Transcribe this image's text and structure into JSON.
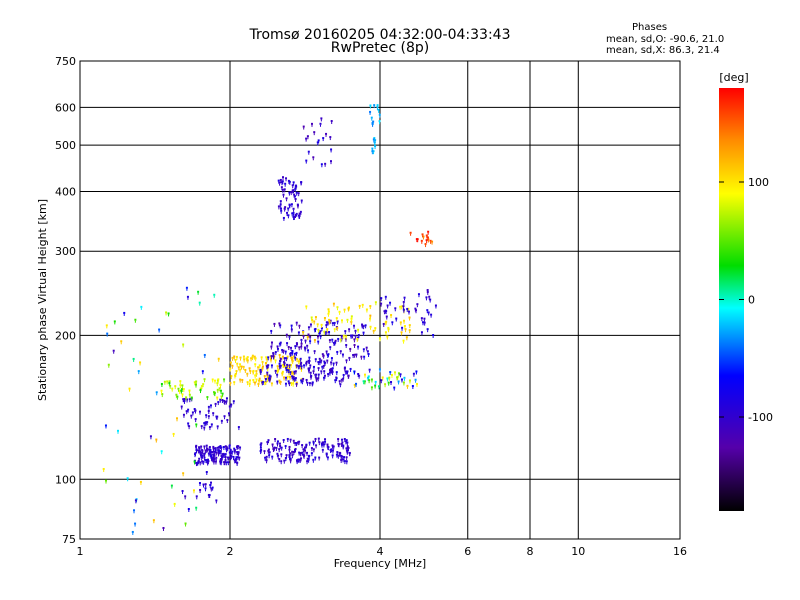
{
  "header": {
    "title_line1": "Tromsø 20160205 04:32:00-04:33:43",
    "title_line2": "RwPretec (8p)"
  },
  "phase_info": {
    "heading": "Phases",
    "o_line": "mean, sd,O: -90.6, 21.0",
    "x_line": "mean, sd,X:  86.3, 21.4"
  },
  "chart_data": {
    "type": "scatter",
    "xlabel": "Frequency [MHz]",
    "ylabel": "Stationary phase Virtual Height [km]",
    "x_scale": "log",
    "y_scale": "log",
    "xlim": [
      1,
      16
    ],
    "ylim": [
      75,
      750
    ],
    "x_ticks": [
      1,
      2,
      4,
      6,
      8,
      10,
      16
    ],
    "y_ticks": [
      75,
      100,
      200,
      300,
      400,
      500,
      600,
      750
    ],
    "grid": true,
    "colorbar": {
      "label": "[deg]",
      "range": [
        -180,
        180
      ],
      "ticks": [
        100,
        0,
        -100
      ],
      "colors": [
        "#ff0000",
        "#ff8800",
        "#ffff00",
        "#00dd00",
        "#00ffff",
        "#0000ff",
        "#5500aa",
        "#000000"
      ]
    },
    "clusters": [
      {
        "x": [
          1.7,
          2.1
        ],
        "y": [
          108,
          118
        ],
        "n": 140,
        "phase": [
          -110,
          -85
        ]
      },
      {
        "x": [
          2.3,
          3.5
        ],
        "y": [
          109,
          122
        ],
        "n": 150,
        "phase": [
          -115,
          -85
        ]
      },
      {
        "x": [
          1.6,
          2.1
        ],
        "y": [
          128,
          148
        ],
        "n": 50,
        "phase": [
          -110,
          -85
        ]
      },
      {
        "x": [
          1.45,
          1.95
        ],
        "y": [
          148,
          162
        ],
        "n": 50,
        "phase": [
          30,
          95
        ]
      },
      {
        "x": [
          2.0,
          2.8
        ],
        "y": [
          158,
          182
        ],
        "n": 120,
        "phase": [
          90,
          120
        ]
      },
      {
        "x": [
          2.3,
          3.5
        ],
        "y": [
          158,
          180
        ],
        "n": 130,
        "phase": [
          -115,
          -80
        ]
      },
      {
        "x": [
          2.4,
          3.8
        ],
        "y": [
          180,
          215
        ],
        "n": 120,
        "phase": [
          -125,
          -75
        ]
      },
      {
        "x": [
          2.8,
          4.6
        ],
        "y": [
          195,
          235
        ],
        "n": 70,
        "phase": [
          80,
          120
        ]
      },
      {
        "x": [
          3.5,
          4.8
        ],
        "y": [
          155,
          170
        ],
        "n": 45,
        "phase": [
          -110,
          110
        ]
      },
      {
        "x": [
          4.0,
          5.2
        ],
        "y": [
          200,
          250
        ],
        "n": 40,
        "phase": [
          -110,
          -80
        ]
      },
      {
        "x": [
          2.5,
          2.8
        ],
        "y": [
          350,
          430
        ],
        "n": 60,
        "phase": [
          -110,
          -85
        ]
      },
      {
        "x": [
          2.8,
          3.2
        ],
        "y": [
          450,
          580
        ],
        "n": 20,
        "phase": [
          -120,
          -80
        ]
      },
      {
        "x": [
          3.8,
          4.0
        ],
        "y": [
          480,
          610
        ],
        "n": 20,
        "phase": [
          -40,
          -10
        ]
      },
      {
        "x": [
          4.6,
          5.1
        ],
        "y": [
          310,
          330
        ],
        "n": 14,
        "phase": [
          130,
          180
        ]
      },
      {
        "x": [
          1.1,
          1.9
        ],
        "y": [
          75,
          260
        ],
        "n": 55,
        "phase": [
          -120,
          120
        ]
      },
      {
        "x": [
          1.6,
          1.9
        ],
        "y": [
          90,
          100
        ],
        "n": 15,
        "phase": [
          -110,
          -80
        ]
      }
    ]
  }
}
